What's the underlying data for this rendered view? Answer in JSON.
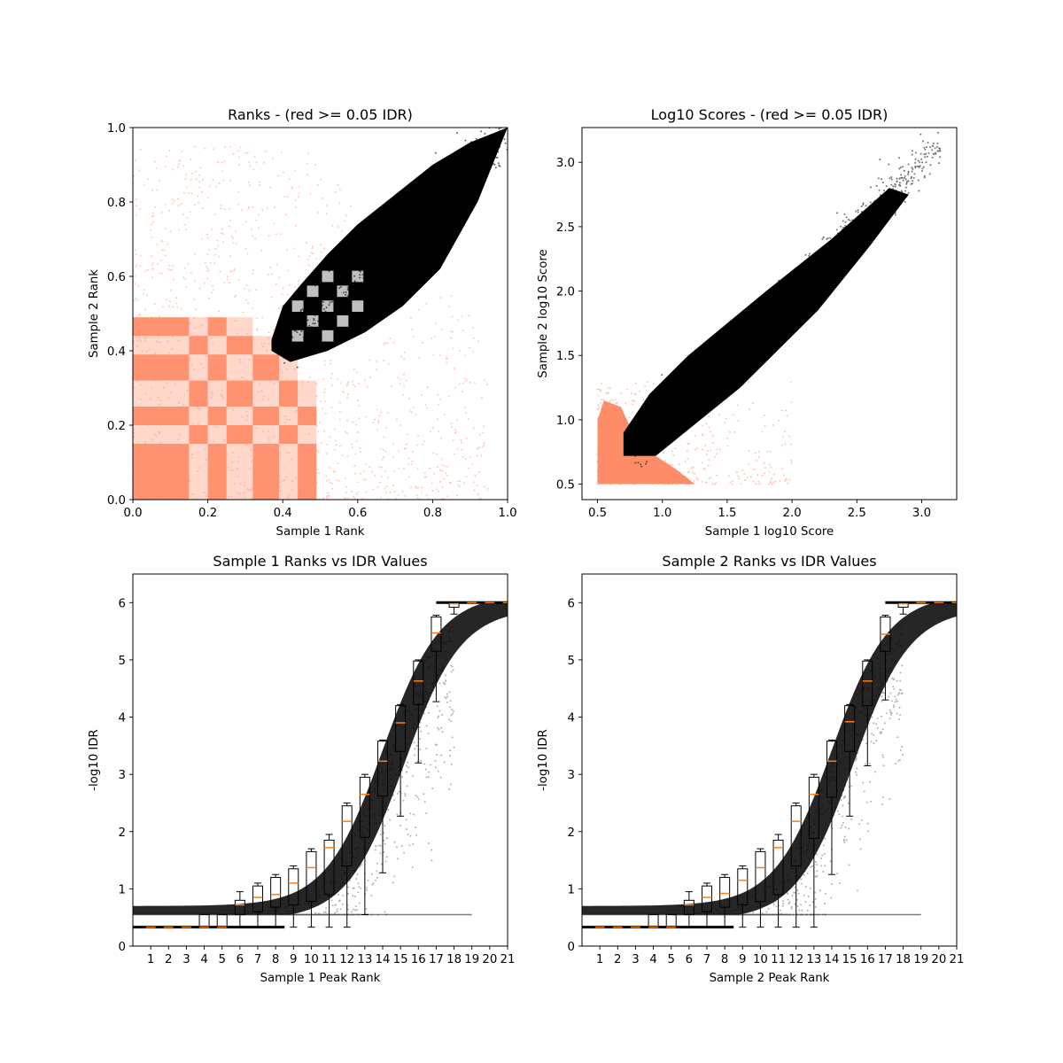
{
  "figure": {
    "background": "#ffffff",
    "accent": "#ff8c69",
    "point_color": "#000000",
    "median_color": "#ff7f0e"
  },
  "chart_data": [
    {
      "id": "ranks",
      "type": "scatter",
      "title": "Ranks - (red >= 0.05 IDR)",
      "xlabel": "Sample 1 Rank",
      "ylabel": "Sample 2 Rank",
      "xlim": [
        0,
        1
      ],
      "ylim": [
        0,
        1
      ],
      "xticks": [
        0.0,
        0.2,
        0.4,
        0.6,
        0.8,
        1.0
      ],
      "yticks": [
        0.0,
        0.2,
        0.4,
        0.6,
        0.8,
        1.0
      ],
      "xtick_labels": [
        "0.0",
        "0.2",
        "0.4",
        "0.6",
        "0.8",
        "1.0"
      ],
      "ytick_labels": [
        "0.0",
        "0.2",
        "0.4",
        "0.6",
        "0.8",
        "1.0"
      ],
      "series": [
        {
          "name": "IDR >= 0.05",
          "color": "#ff8c69",
          "description_region": "lower-left block grid"
        },
        {
          "name": "IDR < 0.05",
          "color": "#000000",
          "envelope_lower": [
            [
              0.37,
              0.4
            ],
            [
              0.42,
              0.37
            ],
            [
              0.52,
              0.4
            ],
            [
              0.62,
              0.45
            ],
            [
              0.72,
              0.52
            ],
            [
              0.82,
              0.62
            ],
            [
              0.92,
              0.8
            ],
            [
              1.0,
              1.0
            ]
          ],
          "envelope_upper": [
            [
              0.37,
              0.43
            ],
            [
              0.4,
              0.52
            ],
            [
              0.45,
              0.58
            ],
            [
              0.52,
              0.66
            ],
            [
              0.6,
              0.74
            ],
            [
              0.7,
              0.82
            ],
            [
              0.8,
              0.9
            ],
            [
              0.9,
              0.96
            ],
            [
              1.0,
              1.0
            ]
          ]
        }
      ]
    },
    {
      "id": "scores",
      "type": "scatter",
      "title": "Log10 Scores - (red >= 0.05 IDR)",
      "xlabel": "Sample 1 log10 Score",
      "ylabel": "Sample 2 log10 Score",
      "xlim": [
        0.38,
        3.27
      ],
      "ylim": [
        0.38,
        3.27
      ],
      "xticks": [
        0.5,
        1.0,
        1.5,
        2.0,
        2.5,
        3.0
      ],
      "yticks": [
        0.5,
        1.0,
        1.5,
        2.0,
        2.5,
        3.0
      ],
      "xtick_labels": [
        "0.5",
        "1.0",
        "1.5",
        "2.0",
        "2.5",
        "3.0"
      ],
      "ytick_labels": [
        "0.5",
        "1.0",
        "1.5",
        "2.0",
        "2.5",
        "3.0"
      ],
      "series": [
        {
          "name": "IDR >= 0.05",
          "color": "#ff8c69",
          "x_range": [
            0.5,
            1.3
          ],
          "y_range": [
            0.5,
            1.25
          ]
        },
        {
          "name": "IDR < 0.05",
          "color": "#000000",
          "x_range": [
            0.7,
            3.15
          ],
          "y_range": [
            0.72,
            3.15
          ]
        }
      ]
    },
    {
      "id": "s1_idr",
      "type": "box",
      "title": "Sample 1 Ranks vs IDR Values",
      "xlabel": "Sample 1 Peak Rank",
      "ylabel": "-log10 IDR",
      "xlim": [
        0,
        21
      ],
      "ylim": [
        0,
        6.5
      ],
      "xticks": [
        1,
        2,
        3,
        4,
        5,
        6,
        7,
        8,
        9,
        10,
        11,
        12,
        13,
        14,
        15,
        16,
        17,
        18,
        19,
        20,
        21
      ],
      "yticks": [
        0,
        1,
        2,
        3,
        4,
        5,
        6
      ],
      "xtick_labels": [
        "1",
        "2",
        "3",
        "4",
        "5",
        "6",
        "7",
        "8",
        "9",
        "10",
        "11",
        "12",
        "13",
        "14",
        "15",
        "16",
        "17",
        "18",
        "19",
        "20",
        "21"
      ],
      "ytick_labels": [
        "0",
        "1",
        "2",
        "3",
        "4",
        "5",
        "6"
      ],
      "boxes": [
        {
          "pos": 1,
          "wlo": 0.33,
          "q1": 0.33,
          "med": 0.33,
          "q3": 0.33,
          "whi": 0.33
        },
        {
          "pos": 2,
          "wlo": 0.33,
          "q1": 0.33,
          "med": 0.33,
          "q3": 0.33,
          "whi": 0.33
        },
        {
          "pos": 3,
          "wlo": 0.33,
          "q1": 0.33,
          "med": 0.33,
          "q3": 0.33,
          "whi": 0.33
        },
        {
          "pos": 4,
          "wlo": 0.33,
          "q1": 0.33,
          "med": 0.33,
          "q3": 0.55,
          "whi": 0.55
        },
        {
          "pos": 5,
          "wlo": 0.33,
          "q1": 0.33,
          "med": 0.33,
          "q3": 0.55,
          "whi": 0.55
        },
        {
          "pos": 6,
          "wlo": 0.33,
          "q1": 0.55,
          "med": 0.72,
          "q3": 0.8,
          "whi": 0.95
        },
        {
          "pos": 7,
          "wlo": 0.33,
          "q1": 0.6,
          "med": 0.85,
          "q3": 1.05,
          "whi": 1.1
        },
        {
          "pos": 8,
          "wlo": 0.33,
          "q1": 0.68,
          "med": 0.9,
          "q3": 1.2,
          "whi": 1.25
        },
        {
          "pos": 9,
          "wlo": 0.33,
          "q1": 0.72,
          "med": 1.1,
          "q3": 1.35,
          "whi": 1.4
        },
        {
          "pos": 10,
          "wlo": 0.33,
          "q1": 0.78,
          "med": 1.37,
          "q3": 1.65,
          "whi": 1.7
        },
        {
          "pos": 11,
          "wlo": 0.33,
          "q1": 0.9,
          "med": 1.72,
          "q3": 1.85,
          "whi": 1.95
        },
        {
          "pos": 12,
          "wlo": 0.33,
          "q1": 1.4,
          "med": 2.18,
          "q3": 2.45,
          "whi": 2.5
        },
        {
          "pos": 13,
          "wlo": 0.55,
          "q1": 1.9,
          "med": 2.65,
          "q3": 2.95,
          "whi": 3.0
        },
        {
          "pos": 14,
          "wlo": 1.28,
          "q1": 2.62,
          "med": 3.23,
          "q3": 3.58,
          "whi": 3.6
        },
        {
          "pos": 15,
          "wlo": 2.27,
          "q1": 3.4,
          "med": 3.9,
          "q3": 4.2,
          "whi": 4.22
        },
        {
          "pos": 16,
          "wlo": 3.2,
          "q1": 4.22,
          "med": 4.63,
          "q3": 4.98,
          "whi": 5.0
        },
        {
          "pos": 17,
          "wlo": 4.27,
          "q1": 5.15,
          "med": 5.47,
          "q3": 5.75,
          "whi": 5.78
        },
        {
          "pos": 18,
          "wlo": 5.8,
          "q1": 5.92,
          "med": 5.98,
          "q3": 6.0,
          "whi": 6.0
        },
        {
          "pos": 19,
          "wlo": 6.0,
          "q1": 6.0,
          "med": 6.0,
          "q3": 6.0,
          "whi": 6.0
        },
        {
          "pos": 20,
          "wlo": 6.0,
          "q1": 6.0,
          "med": 6.0,
          "q3": 6.0,
          "whi": 6.0
        },
        {
          "pos": 21,
          "wlo": 6.0,
          "q1": 6.0,
          "med": 6.0,
          "q3": 6.0,
          "whi": 6.0
        }
      ]
    },
    {
      "id": "s2_idr",
      "type": "box",
      "title": "Sample 2 Ranks vs IDR Values",
      "xlabel": "Sample 2 Peak Rank",
      "ylabel": "-log10 IDR",
      "xlim": [
        0,
        21
      ],
      "ylim": [
        0,
        6.5
      ],
      "xticks": [
        1,
        2,
        3,
        4,
        5,
        6,
        7,
        8,
        9,
        10,
        11,
        12,
        13,
        14,
        15,
        16,
        17,
        18,
        19,
        20,
        21
      ],
      "yticks": [
        0,
        1,
        2,
        3,
        4,
        5,
        6
      ],
      "xtick_labels": [
        "1",
        "2",
        "3",
        "4",
        "5",
        "6",
        "7",
        "8",
        "9",
        "10",
        "11",
        "12",
        "13",
        "14",
        "15",
        "16",
        "17",
        "18",
        "19",
        "20",
        "21"
      ],
      "ytick_labels": [
        "0",
        "1",
        "2",
        "3",
        "4",
        "5",
        "6"
      ],
      "boxes": [
        {
          "pos": 1,
          "wlo": 0.33,
          "q1": 0.33,
          "med": 0.33,
          "q3": 0.33,
          "whi": 0.33
        },
        {
          "pos": 2,
          "wlo": 0.33,
          "q1": 0.33,
          "med": 0.33,
          "q3": 0.33,
          "whi": 0.33
        },
        {
          "pos": 3,
          "wlo": 0.33,
          "q1": 0.33,
          "med": 0.33,
          "q3": 0.33,
          "whi": 0.33
        },
        {
          "pos": 4,
          "wlo": 0.33,
          "q1": 0.33,
          "med": 0.33,
          "q3": 0.55,
          "whi": 0.55
        },
        {
          "pos": 5,
          "wlo": 0.33,
          "q1": 0.33,
          "med": 0.33,
          "q3": 0.55,
          "whi": 0.55
        },
        {
          "pos": 6,
          "wlo": 0.33,
          "q1": 0.55,
          "med": 0.72,
          "q3": 0.8,
          "whi": 0.95
        },
        {
          "pos": 7,
          "wlo": 0.33,
          "q1": 0.6,
          "med": 0.85,
          "q3": 1.05,
          "whi": 1.1
        },
        {
          "pos": 8,
          "wlo": 0.33,
          "q1": 0.68,
          "med": 0.92,
          "q3": 1.2,
          "whi": 1.25
        },
        {
          "pos": 9,
          "wlo": 0.33,
          "q1": 0.72,
          "med": 1.15,
          "q3": 1.35,
          "whi": 1.4
        },
        {
          "pos": 10,
          "wlo": 0.33,
          "q1": 0.78,
          "med": 1.37,
          "q3": 1.65,
          "whi": 1.7
        },
        {
          "pos": 11,
          "wlo": 0.33,
          "q1": 0.9,
          "med": 1.72,
          "q3": 1.85,
          "whi": 1.95
        },
        {
          "pos": 12,
          "wlo": 0.33,
          "q1": 1.4,
          "med": 2.18,
          "q3": 2.45,
          "whi": 2.5
        },
        {
          "pos": 13,
          "wlo": 0.33,
          "q1": 1.88,
          "med": 2.65,
          "q3": 2.95,
          "whi": 3.0
        },
        {
          "pos": 14,
          "wlo": 1.25,
          "q1": 2.6,
          "med": 3.23,
          "q3": 3.58,
          "whi": 3.6
        },
        {
          "pos": 15,
          "wlo": 2.27,
          "q1": 3.4,
          "med": 3.92,
          "q3": 4.2,
          "whi": 4.22
        },
        {
          "pos": 16,
          "wlo": 3.15,
          "q1": 4.2,
          "med": 4.63,
          "q3": 4.98,
          "whi": 5.0
        },
        {
          "pos": 17,
          "wlo": 4.3,
          "q1": 5.15,
          "med": 5.45,
          "q3": 5.75,
          "whi": 5.78
        },
        {
          "pos": 18,
          "wlo": 5.8,
          "q1": 5.92,
          "med": 5.98,
          "q3": 6.0,
          "whi": 6.0
        },
        {
          "pos": 19,
          "wlo": 6.0,
          "q1": 6.0,
          "med": 6.0,
          "q3": 6.0,
          "whi": 6.0
        },
        {
          "pos": 20,
          "wlo": 6.0,
          "q1": 6.0,
          "med": 6.0,
          "q3": 6.0,
          "whi": 6.0
        },
        {
          "pos": 21,
          "wlo": 6.0,
          "q1": 6.0,
          "med": 6.0,
          "q3": 6.0,
          "whi": 6.0
        }
      ]
    }
  ]
}
